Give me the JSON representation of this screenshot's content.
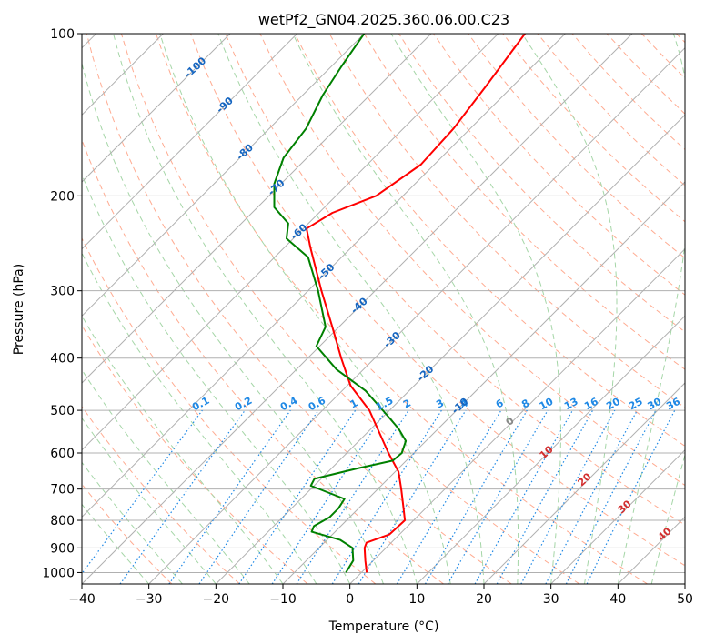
{
  "chart_data": {
    "type": "skew-t",
    "title": "wetPf2_GN04.2025.360.06.00.C23",
    "xlabel": "Temperature (°C)",
    "ylabel": "Pressure (hPa)",
    "xlim": [
      -40,
      50
    ],
    "ylim_hpa": [
      1050,
      100
    ],
    "x_ticks": [
      -40,
      -30,
      -20,
      -10,
      0,
      10,
      20,
      30,
      40,
      50
    ],
    "y_ticks": [
      1000,
      900,
      800,
      700,
      600,
      500,
      400,
      300,
      200,
      100
    ],
    "temperature_profile": {
      "name": "Temperature",
      "color": "#ff0000",
      "points": [
        {
          "p": 1000,
          "t": 0.8
        },
        {
          "p": 950,
          "t": -1.2
        },
        {
          "p": 900,
          "t": -3.2
        },
        {
          "p": 880,
          "t": -3.7
        },
        {
          "p": 850,
          "t": -1.5
        },
        {
          "p": 800,
          "t": -1.3
        },
        {
          "p": 750,
          "t": -3.8
        },
        {
          "p": 700,
          "t": -6.5
        },
        {
          "p": 650,
          "t": -9.5
        },
        {
          "p": 600,
          "t": -13.8
        },
        {
          "p": 550,
          "t": -18.2
        },
        {
          "p": 500,
          "t": -23
        },
        {
          "p": 450,
          "t": -29.5
        },
        {
          "p": 400,
          "t": -35
        },
        {
          "p": 350,
          "t": -41
        },
        {
          "p": 300,
          "t": -48
        },
        {
          "p": 250,
          "t": -56
        },
        {
          "p": 230,
          "t": -59.5
        },
        {
          "p": 215,
          "t": -58
        },
        {
          "p": 200,
          "t": -54
        },
        {
          "p": 175,
          "t": -52
        },
        {
          "p": 150,
          "t": -52.5
        },
        {
          "p": 125,
          "t": -54
        },
        {
          "p": 100,
          "t": -56
        }
      ]
    },
    "dewpoint_profile": {
      "name": "Dewpoint",
      "color": "#008000",
      "points": [
        {
          "p": 1000,
          "t": -2.3
        },
        {
          "p": 950,
          "t": -3
        },
        {
          "p": 900,
          "t": -5
        },
        {
          "p": 870,
          "t": -8
        },
        {
          "p": 840,
          "t": -13.5
        },
        {
          "p": 820,
          "t": -14
        },
        {
          "p": 790,
          "t": -13
        },
        {
          "p": 760,
          "t": -13
        },
        {
          "p": 730,
          "t": -13.5
        },
        {
          "p": 690,
          "t": -20.5
        },
        {
          "p": 670,
          "t": -21
        },
        {
          "p": 640,
          "t": -16
        },
        {
          "p": 620,
          "t": -12
        },
        {
          "p": 600,
          "t": -11.8
        },
        {
          "p": 570,
          "t": -13
        },
        {
          "p": 540,
          "t": -16
        },
        {
          "p": 500,
          "t": -21
        },
        {
          "p": 460,
          "t": -26.5
        },
        {
          "p": 420,
          "t": -34
        },
        {
          "p": 380,
          "t": -40.5
        },
        {
          "p": 350,
          "t": -42
        },
        {
          "p": 300,
          "t": -48.5
        },
        {
          "p": 260,
          "t": -55
        },
        {
          "p": 240,
          "t": -61
        },
        {
          "p": 225,
          "t": -63
        },
        {
          "p": 210,
          "t": -67.5
        },
        {
          "p": 190,
          "t": -71
        },
        {
          "p": 170,
          "t": -73.5
        },
        {
          "p": 150,
          "t": -74.5
        },
        {
          "p": 130,
          "t": -77
        },
        {
          "p": 115,
          "t": -78.5
        },
        {
          "p": 100,
          "t": -80
        }
      ]
    },
    "skewed_isotherm_labels": [
      {
        "text": "-100",
        "t": -100,
        "p": 115
      },
      {
        "text": "-90",
        "t": -90,
        "p": 135
      },
      {
        "text": "-80",
        "t": -80,
        "p": 165
      },
      {
        "text": "-70",
        "t": -70,
        "p": 192
      },
      {
        "text": "-60",
        "t": -60,
        "p": 232
      },
      {
        "text": "-50",
        "t": -50,
        "p": 275
      },
      {
        "text": "-40",
        "t": -40,
        "p": 318
      },
      {
        "text": "-30",
        "t": -30,
        "p": 368
      },
      {
        "text": "-20",
        "t": -20,
        "p": 425
      },
      {
        "text": "-10",
        "t": -10,
        "p": 488
      }
    ],
    "mixing_ratio_labels": [
      "0.1",
      "0.2",
      "0.4",
      "0.6",
      "1",
      "1.5",
      "2",
      "3",
      "4",
      "6",
      "8",
      "10",
      "13",
      "16",
      "20",
      "25",
      "30",
      "36"
    ],
    "isotherm_labels_lower": [
      {
        "text": "0",
        "color": "#888888"
      },
      {
        "text": "10",
        "color": "#d32f2f"
      },
      {
        "text": "20",
        "color": "#d32f2f"
      },
      {
        "text": "30",
        "color": "#d32f2f"
      },
      {
        "text": "40",
        "color": "#d32f2f"
      }
    ],
    "colors": {
      "isotherm": "#b0b0b0",
      "dry_adiabat": "#ffab91",
      "moist_adiabat": "#a5d6a7",
      "mixing_ratio": "#1e88e5",
      "isotherm_label": "#1565c0",
      "lower_label": "#d32f2f"
    }
  }
}
